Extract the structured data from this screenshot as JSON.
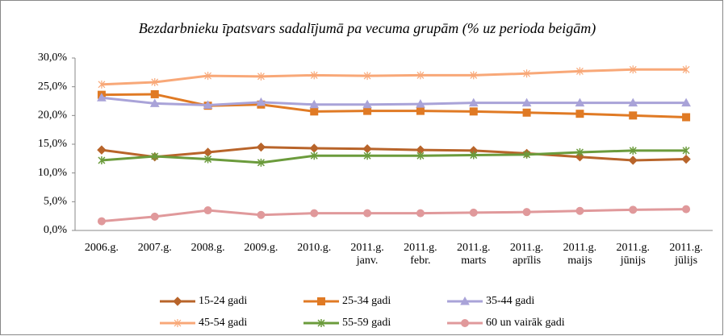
{
  "chart_data": {
    "type": "line",
    "title": "Bezdarbnieku īpatsvars sadalījumā pa vecuma grupām (% uz perioda beigām)",
    "categories": [
      "2006.g.",
      "2007.g.",
      "2008.g.",
      "2009.g.",
      "2010.g.",
      "2011.g.\njanv.",
      "2011.g.\nfebr.",
      "2011.g.\nmarts",
      "2011.g.\naprīlis",
      "2011.g.\nmaijs",
      "2011.g.\njūnijs",
      "2011.g.\njūlijs"
    ],
    "series": [
      {
        "name": "15-24 gadi",
        "color": "#b8642a",
        "values": [
          14.0,
          12.8,
          13.6,
          14.5,
          14.3,
          14.2,
          14.0,
          13.9,
          13.4,
          12.8,
          12.2,
          12.4
        ]
      },
      {
        "name": "25-34 gadi",
        "color": "#e07a24",
        "values": [
          23.6,
          23.7,
          21.7,
          21.9,
          20.7,
          20.8,
          20.8,
          20.7,
          20.5,
          20.3,
          20.0,
          19.7
        ]
      },
      {
        "name": "35-44 gadi",
        "color": "#a9a3d8",
        "values": [
          23.1,
          22.1,
          21.8,
          22.3,
          21.9,
          21.9,
          22.0,
          22.2,
          22.2,
          22.2,
          22.2,
          22.2
        ]
      },
      {
        "name": "45-54 gadi",
        "color": "#f8a878",
        "values": [
          25.4,
          25.8,
          26.9,
          26.8,
          27.0,
          26.9,
          27.0,
          27.0,
          27.3,
          27.7,
          28.0,
          28.0
        ]
      },
      {
        "name": "55-59 gadi",
        "color": "#6b9b3c",
        "values": [
          12.2,
          12.9,
          12.4,
          11.8,
          13.0,
          13.0,
          13.0,
          13.1,
          13.2,
          13.6,
          13.9,
          13.9
        ]
      },
      {
        "name": "60 un vairāk gadi",
        "color": "#e0999b",
        "values": [
          1.6,
          2.4,
          3.5,
          2.7,
          3.0,
          3.0,
          3.0,
          3.1,
          3.2,
          3.4,
          3.6,
          3.7
        ]
      }
    ],
    "ylim": [
      0,
      30
    ],
    "yticks": [
      {
        "value": 0,
        "label": "0,0%"
      },
      {
        "value": 5,
        "label": "5,0%"
      },
      {
        "value": 10,
        "label": "10,0%"
      },
      {
        "value": 15,
        "label": "15,0%"
      },
      {
        "value": 20,
        "label": "20,0%"
      },
      {
        "value": 25,
        "label": "25,0%"
      },
      {
        "value": 30,
        "label": "30,0%"
      }
    ],
    "grid": false
  }
}
